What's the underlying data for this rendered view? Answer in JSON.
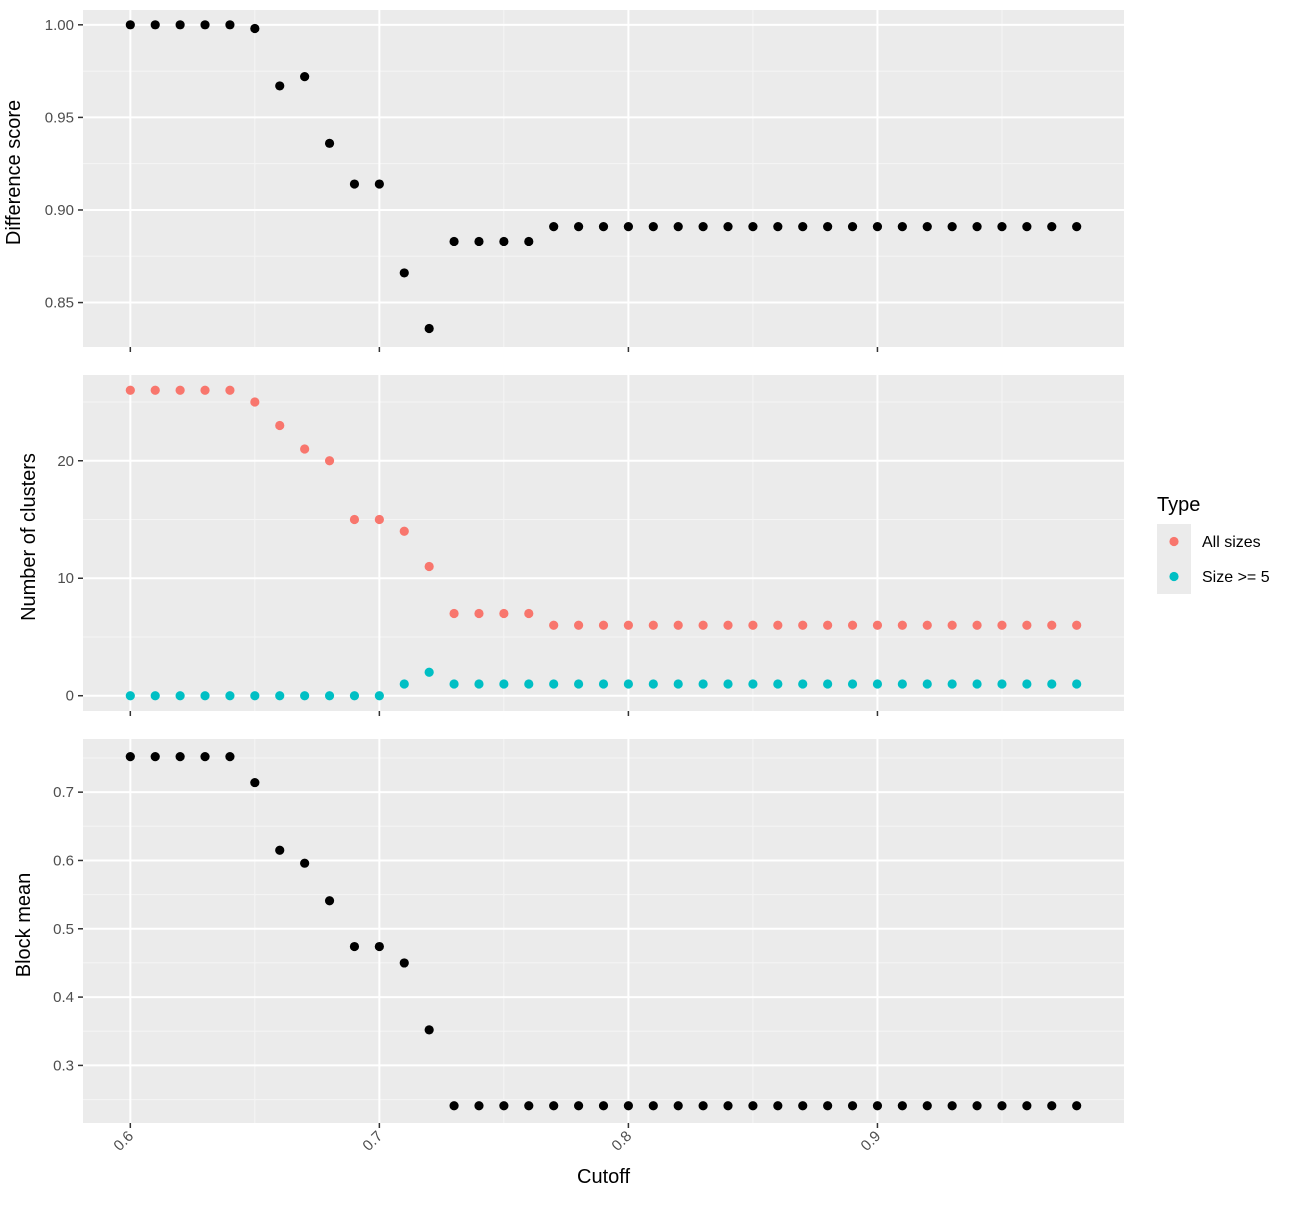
{
  "chart_data": [
    {
      "type": "scatter",
      "ylabel": "Difference score",
      "ylim": [
        0.826,
        1.008
      ],
      "yticks": [
        0.85,
        0.9,
        0.95,
        1.0
      ],
      "ytick_labels": [
        "0.85",
        "0.90",
        "0.95",
        "1.00"
      ],
      "x": [
        0.6,
        0.61,
        0.62,
        0.63,
        0.64,
        0.65,
        0.66,
        0.67,
        0.68,
        0.69,
        0.7,
        0.71,
        0.72,
        0.73,
        0.74,
        0.75,
        0.76,
        0.77,
        0.78,
        0.79,
        0.8,
        0.81,
        0.82,
        0.83,
        0.84,
        0.85,
        0.86,
        0.87,
        0.88,
        0.89,
        0.9,
        0.91,
        0.92,
        0.93,
        0.94,
        0.95,
        0.96,
        0.97,
        0.98
      ],
      "series": [
        {
          "color": "#000000",
          "values": [
            1.0,
            1.0,
            1.0,
            1.0,
            1.0,
            0.998,
            0.967,
            0.972,
            0.936,
            0.914,
            0.914,
            0.866,
            0.836,
            0.883,
            0.883,
            0.883,
            0.883,
            0.891,
            0.891,
            0.891,
            0.891,
            0.891,
            0.891,
            0.891,
            0.891,
            0.891,
            0.891,
            0.891,
            0.891,
            0.891,
            0.891,
            0.891,
            0.891,
            0.891,
            0.891,
            0.891,
            0.891,
            0.891,
            0.891
          ]
        }
      ]
    },
    {
      "type": "scatter",
      "ylabel": "Number of clusters",
      "ylim": [
        -1.3,
        27.3
      ],
      "yticks": [
        0,
        10,
        20
      ],
      "ytick_labels": [
        "0",
        "10",
        "20"
      ],
      "x": [
        0.6,
        0.61,
        0.62,
        0.63,
        0.64,
        0.65,
        0.66,
        0.67,
        0.68,
        0.69,
        0.7,
        0.71,
        0.72,
        0.73,
        0.74,
        0.75,
        0.76,
        0.77,
        0.78,
        0.79,
        0.8,
        0.81,
        0.82,
        0.83,
        0.84,
        0.85,
        0.86,
        0.87,
        0.88,
        0.89,
        0.9,
        0.91,
        0.92,
        0.93,
        0.94,
        0.95,
        0.96,
        0.97,
        0.98
      ],
      "series": [
        {
          "name": "All sizes",
          "color": "#F8766D",
          "values": [
            26,
            26,
            26,
            26,
            26,
            25,
            23,
            21,
            20,
            15,
            15,
            14,
            11,
            7,
            7,
            7,
            7,
            6,
            6,
            6,
            6,
            6,
            6,
            6,
            6,
            6,
            6,
            6,
            6,
            6,
            6,
            6,
            6,
            6,
            6,
            6,
            6,
            6,
            6
          ]
        },
        {
          "name": "Size >= 5",
          "color": "#00BFC4",
          "values": [
            0,
            0,
            0,
            0,
            0,
            0,
            0,
            0,
            0,
            0,
            0,
            1,
            2,
            1,
            1,
            1,
            1,
            1,
            1,
            1,
            1,
            1,
            1,
            1,
            1,
            1,
            1,
            1,
            1,
            1,
            1,
            1,
            1,
            1,
            1,
            1,
            1,
            1,
            1
          ]
        }
      ]
    },
    {
      "type": "scatter",
      "ylabel": "Block mean",
      "xlabel": "Cutoff",
      "ylim": [
        0.2157,
        0.7778
      ],
      "yticks": [
        0.3,
        0.4,
        0.5,
        0.6,
        0.7
      ],
      "ytick_labels": [
        "0.3",
        "0.4",
        "0.5",
        "0.6",
        "0.7"
      ],
      "x": [
        0.6,
        0.61,
        0.62,
        0.63,
        0.64,
        0.65,
        0.66,
        0.67,
        0.68,
        0.69,
        0.7,
        0.71,
        0.72,
        0.73,
        0.74,
        0.75,
        0.76,
        0.77,
        0.78,
        0.79,
        0.8,
        0.81,
        0.82,
        0.83,
        0.84,
        0.85,
        0.86,
        0.87,
        0.88,
        0.89,
        0.9,
        0.91,
        0.92,
        0.93,
        0.94,
        0.95,
        0.96,
        0.97,
        0.98
      ],
      "series": [
        {
          "color": "#000000",
          "values": [
            0.752,
            0.752,
            0.752,
            0.752,
            0.752,
            0.714,
            0.615,
            0.596,
            0.541,
            0.474,
            0.474,
            0.45,
            0.352,
            0.241,
            0.241,
            0.241,
            0.241,
            0.241,
            0.241,
            0.241,
            0.241,
            0.241,
            0.241,
            0.241,
            0.241,
            0.241,
            0.241,
            0.241,
            0.241,
            0.241,
            0.241,
            0.241,
            0.241,
            0.241,
            0.241,
            0.241,
            0.241,
            0.241,
            0.241
          ]
        }
      ]
    }
  ],
  "x_axis": {
    "label": "Cutoff",
    "xlim": [
      0.581,
      0.999
    ],
    "ticks": [
      0.6,
      0.7,
      0.8,
      0.9
    ],
    "tick_labels": [
      "0.6",
      "0.7",
      "0.8",
      "0.9"
    ]
  },
  "legend": {
    "title": "Type",
    "position": "right",
    "items": [
      {
        "label": "All sizes",
        "color": "#F8766D"
      },
      {
        "label": "Size >= 5",
        "color": "#00BFC4"
      }
    ]
  },
  "colors": {
    "panel_background": "#EBEBEB",
    "grid_major": "#FFFFFF",
    "grid_minor": "#F5F5F5",
    "tick_mark": "#333333",
    "tick_label": "#4D4D4D"
  }
}
